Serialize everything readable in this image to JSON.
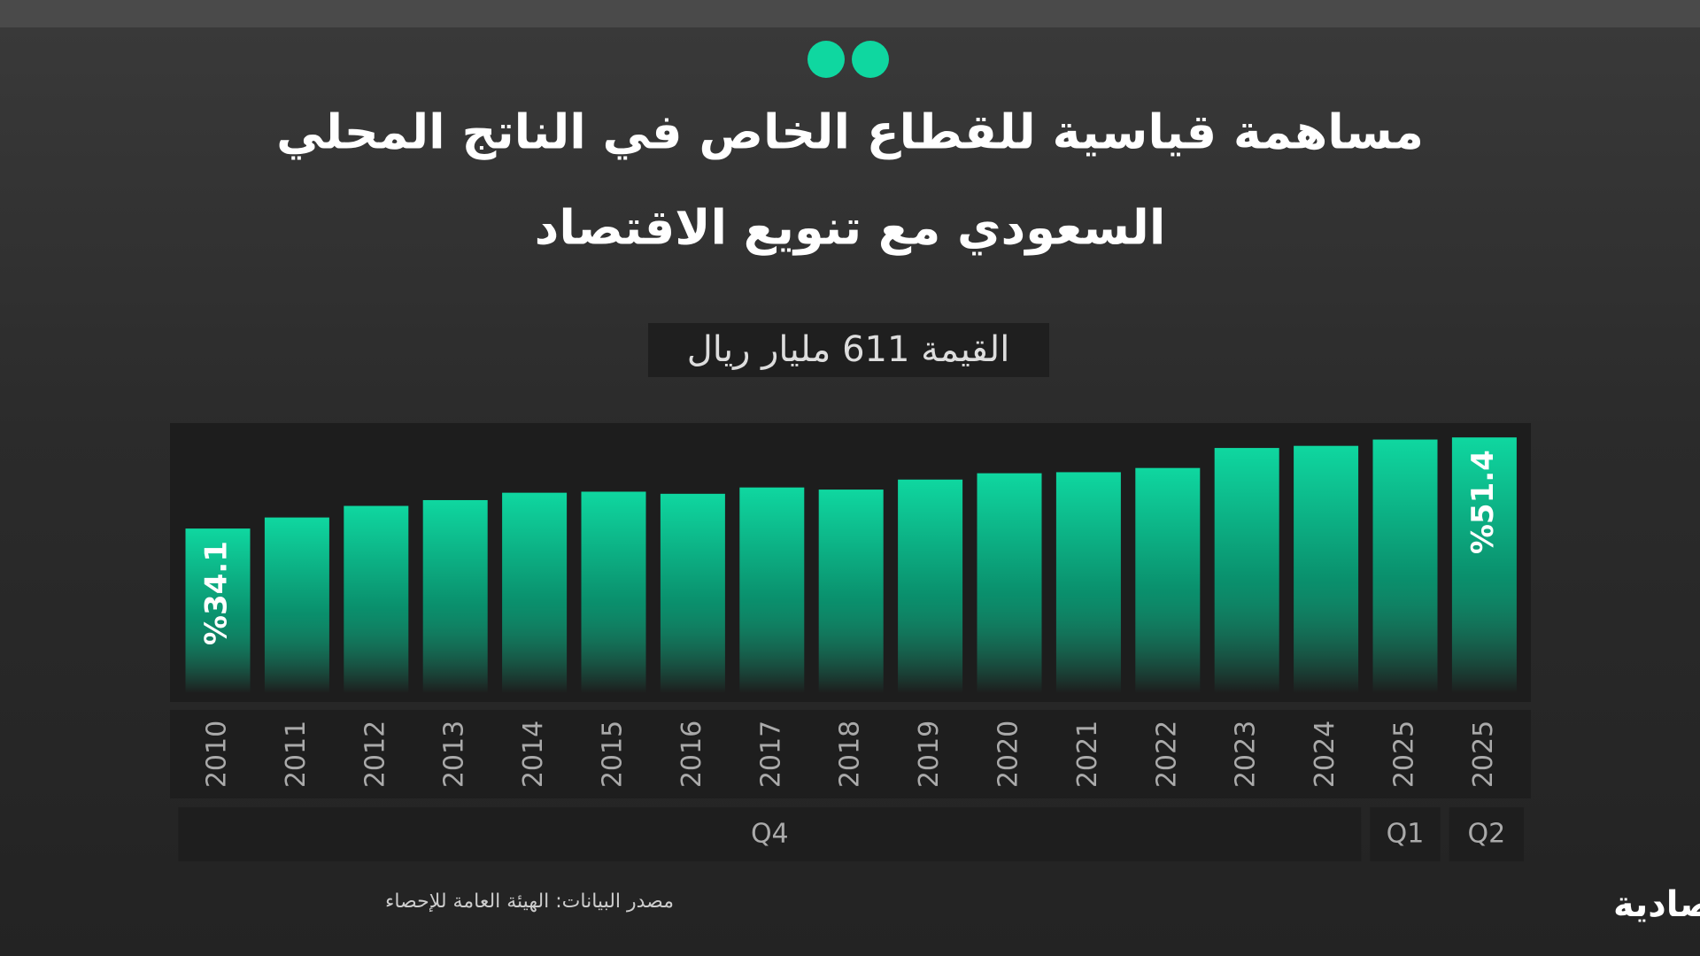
{
  "chart_data": {
    "type": "bar",
    "title_lines": [
      "مساهمة قياسية للقطاع الخاص في الناتج المحلي",
      "السعودي مع تنويع الاقتصاد"
    ],
    "subtitle": "القيمة 611 مليار ريال",
    "categories": [
      "2010",
      "2011",
      "2012",
      "2013",
      "2014",
      "2015",
      "2016",
      "2017",
      "2018",
      "2019",
      "2020",
      "2021",
      "2022",
      "2023",
      "2024",
      "2025",
      "2025"
    ],
    "quarters": [
      "Q4",
      "Q4",
      "Q4",
      "Q4",
      "Q4",
      "Q4",
      "Q4",
      "Q4",
      "Q4",
      "Q4",
      "Q4",
      "Q4",
      "Q4",
      "Q4",
      "Q4",
      "Q1",
      "Q2"
    ],
    "values": [
      34.1,
      36.2,
      38.4,
      39.5,
      40.9,
      41.1,
      40.7,
      41.9,
      41.5,
      43.4,
      44.6,
      44.8,
      45.6,
      49.4,
      49.8,
      51.0,
      51.4
    ],
    "value_labels": [
      "%34.1",
      null,
      null,
      null,
      null,
      null,
      null,
      null,
      null,
      null,
      null,
      null,
      null,
      null,
      null,
      null,
      "%51.4"
    ],
    "color": "#0fd7a0",
    "ylim": [
      0,
      60
    ],
    "source": "مصدر البيانات: الهيئة العامة للإحصاء",
    "brand": "الاقتصادية"
  }
}
